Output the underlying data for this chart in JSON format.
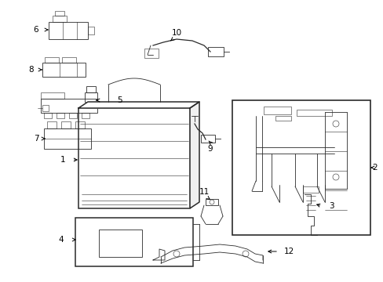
{
  "bg_color": "#ffffff",
  "line_color": "#2a2a2a",
  "fig_width": 4.89,
  "fig_height": 3.6,
  "dpi": 100,
  "label_fontsize": 7.5
}
